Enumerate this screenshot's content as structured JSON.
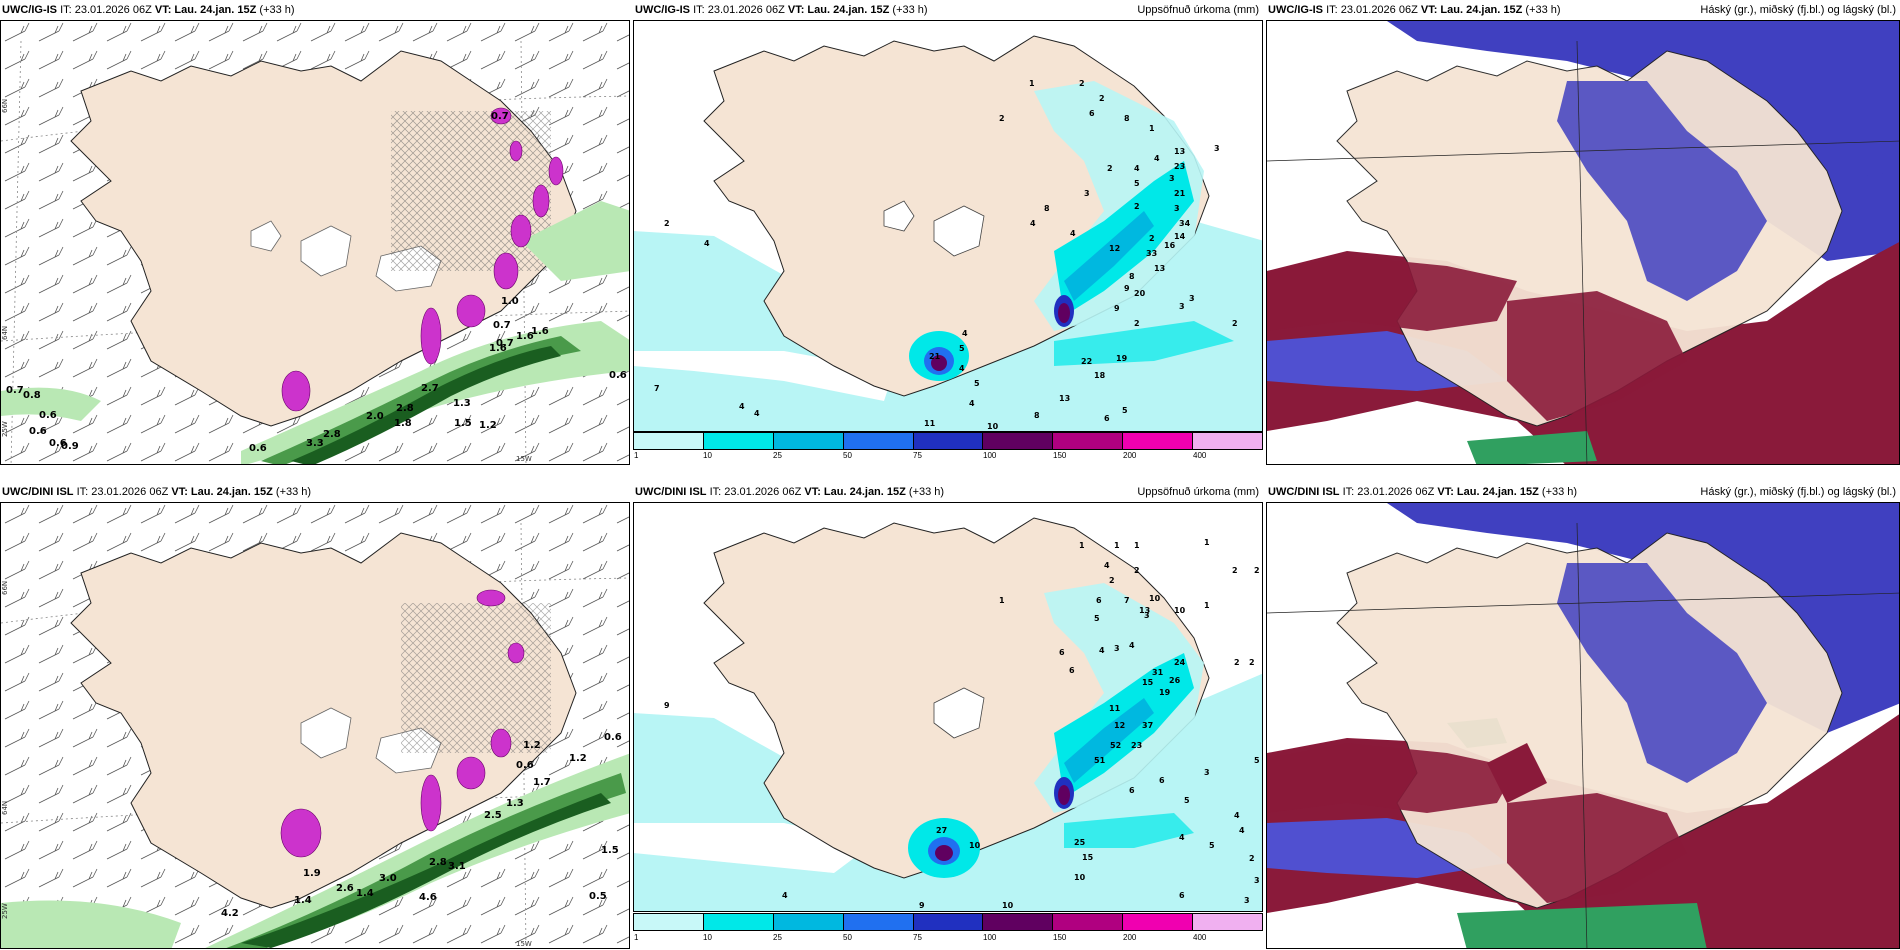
{
  "panels": [
    {
      "model": "UWC/IG-IS",
      "it": "IT: 23.01.2026 06Z",
      "vt_label": "VT:",
      "vt": "Lau. 24.jan. 15Z",
      "lead": "(+33 h)",
      "right": ""
    },
    {
      "model": "UWC/IG-IS",
      "it": "IT: 23.01.2026 06Z",
      "vt_label": "VT:",
      "vt": "Lau. 24.jan. 15Z",
      "lead": "(+33 h)",
      "right": "Uppsöfnuð úrkoma (mm)"
    },
    {
      "model": "UWC/IG-IS",
      "it": "IT: 23.01.2026 06Z",
      "vt_label": "VT:",
      "vt": "Lau. 24.jan. 15Z",
      "lead": "(+33 h)",
      "right": "Háský (gr.), miðský (fj.bl.) og lágský (bl.)"
    },
    {
      "model": "UWC/DINI ISL",
      "it": "IT: 23.01.2026 06Z",
      "vt_label": "VT:",
      "vt": "Lau. 24.jan. 15Z",
      "lead": "(+33 h)",
      "right": ""
    },
    {
      "model": "UWC/DINI ISL",
      "it": "IT: 23.01.2026 06Z",
      "vt_label": "VT:",
      "vt": "Lau. 24.jan. 15Z",
      "lead": "(+33 h)",
      "right": "Uppsöfnuð úrkoma (mm)"
    },
    {
      "model": "UWC/DINI ISL",
      "it": "IT: 23.01.2026 06Z",
      "vt_label": "VT:",
      "vt": "Lau. 24.jan. 15Z",
      "lead": "(+33 h)",
      "right": "Háský (gr.), miðský (fj.bl.) og lágský (bl.)"
    }
  ],
  "axis_labels": {
    "lat66": "66N",
    "lat64": "64N",
    "lat63": "63N",
    "lon25": "25W",
    "lon15": "15W"
  },
  "colors": {
    "land": "#f5e4d4",
    "sea": "#ffffff",
    "precip_light": "#b8f5f5",
    "green_light": "#b9e8b4",
    "green_dark": "#1a5e20",
    "magenta": "#cc33cc",
    "cloud_blue": "#4040c0",
    "cloud_red": "#8a1a3a",
    "cloud_green": "#30a060"
  },
  "precip_scale": {
    "ticks": [
      "1",
      "10",
      "25",
      "50",
      "75",
      "100",
      "150",
      "200",
      "400"
    ],
    "colors": [
      "#c8f8f8",
      "#00e8e8",
      "#00b8e0",
      "#2070f0",
      "#2030c0",
      "#600060",
      "#b00080",
      "#f000b0",
      "#f0b0f0"
    ]
  },
  "wind_labels_top": [
    "0.7",
    "0.7",
    "1.0",
    "0.7",
    "1.6",
    "1.6",
    "1.6",
    "0.6",
    "2.7",
    "1.3",
    "1.8",
    "2.8",
    "2.8",
    "0.7",
    "0.8",
    "0.6",
    "0.6",
    "0.9",
    "0.6",
    "0.6",
    "3.3",
    "1.5",
    "1.2",
    "2.0"
  ],
  "wind_labels_bottom": [
    "1.2",
    "0.6",
    "0.6",
    "1.2",
    "1.7",
    "2.5",
    "1.3",
    "2.8",
    "3.1",
    "3.0",
    "2.6",
    "4.6",
    "4.2",
    "1.4",
    "1.4",
    "0.5",
    "1.5",
    "1.9"
  ],
  "precip_labels_top": [
    "2",
    "1",
    "2",
    "2",
    "6",
    "8",
    "1",
    "3",
    "4",
    "4",
    "3",
    "5",
    "2",
    "2",
    "3",
    "3",
    "13",
    "21",
    "23",
    "8",
    "4",
    "4",
    "2",
    "34",
    "14",
    "12",
    "33",
    "13",
    "8",
    "16",
    "9",
    "20",
    "3",
    "3",
    "2",
    "9",
    "2",
    "22",
    "19",
    "18",
    "13",
    "4",
    "21",
    "2",
    "4",
    "7",
    "4",
    "4",
    "5",
    "8",
    "10",
    "11",
    "5",
    "4",
    "4",
    "6",
    "5"
  ],
  "precip_labels_bottom": [
    "1",
    "1",
    "1",
    "1",
    "2",
    "2",
    "4",
    "2",
    "2",
    "1",
    "6",
    "7",
    "1",
    "5",
    "3",
    "6",
    "6",
    "4",
    "3",
    "4",
    "10",
    "13",
    "10",
    "24",
    "26",
    "19",
    "2",
    "2",
    "15",
    "31",
    "11",
    "37",
    "23",
    "52",
    "51",
    "12",
    "6",
    "6",
    "5",
    "3",
    "3",
    "4",
    "5",
    "4",
    "27",
    "10",
    "25",
    "15",
    "10",
    "9",
    "10",
    "9",
    "4",
    "6",
    "5",
    "3",
    "4",
    "2"
  ]
}
